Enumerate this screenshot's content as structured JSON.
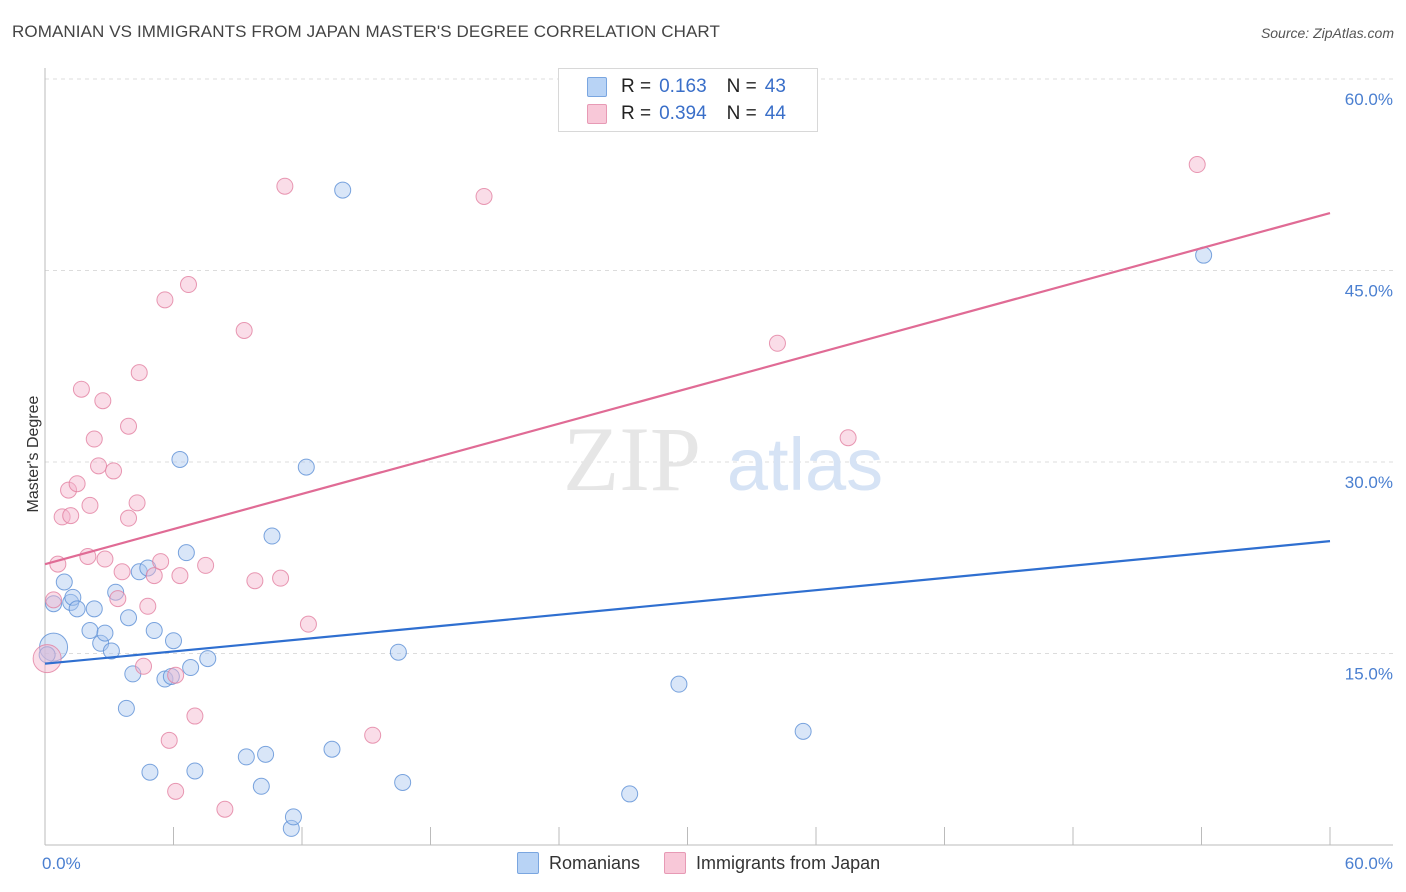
{
  "title": "ROMANIAN VS IMMIGRANTS FROM JAPAN MASTER'S DEGREE CORRELATION CHART",
  "source": "Source: ZipAtlas.com",
  "watermark": {
    "part1": "ZIP",
    "part2": "atlas"
  },
  "legend": {
    "r_label": "R =",
    "n_label": "N =",
    "rows": [
      {
        "r": "0.163",
        "n": "43",
        "color": "#5b8fd6"
      },
      {
        "r": "0.394",
        "n": "44",
        "color": "#e27fa0"
      }
    ]
  },
  "bottom_legend": [
    "Romanians",
    "Immigrants from Japan"
  ],
  "chart_data": {
    "type": "scatter",
    "xlabel": "",
    "ylabel": "Master's Degree",
    "xlim": [
      0,
      60
    ],
    "ylim": [
      0,
      60
    ],
    "x_tick_labels": [
      "0.0%",
      "60.0%"
    ],
    "y_ticks": [
      15,
      30,
      45,
      60
    ],
    "y_tick_labels": [
      "15.0%",
      "30.0%",
      "45.0%",
      "60.0%"
    ],
    "series": [
      {
        "name": "Romanians",
        "color": "#5b8fd6",
        "trend": {
          "x": [
            0,
            60
          ],
          "y": [
            14.2,
            23.8
          ]
        },
        "points": [
          [
            0.4,
            15.5
          ],
          [
            0.4,
            18.9
          ],
          [
            0.9,
            20.6
          ],
          [
            1.2,
            19.0
          ],
          [
            1.3,
            19.4
          ],
          [
            1.5,
            18.5
          ],
          [
            2.1,
            16.8
          ],
          [
            2.3,
            18.5
          ],
          [
            2.6,
            15.8
          ],
          [
            2.8,
            16.6
          ],
          [
            3.1,
            15.2
          ],
          [
            3.3,
            19.8
          ],
          [
            3.8,
            10.7
          ],
          [
            3.9,
            17.8
          ],
          [
            4.1,
            13.4
          ],
          [
            4.4,
            21.4
          ],
          [
            4.9,
            5.7
          ],
          [
            5.1,
            16.8
          ],
          [
            5.6,
            13.0
          ],
          [
            5.9,
            13.2
          ],
          [
            6.0,
            16.0
          ],
          [
            6.3,
            30.2
          ],
          [
            6.6,
            22.9
          ],
          [
            6.8,
            13.9
          ],
          [
            7.0,
            5.8
          ],
          [
            7.6,
            14.6
          ],
          [
            9.4,
            6.9
          ],
          [
            10.1,
            4.6
          ],
          [
            10.3,
            7.1
          ],
          [
            11.5,
            1.3
          ],
          [
            11.6,
            2.2
          ],
          [
            10.6,
            24.2
          ],
          [
            12.2,
            29.6
          ],
          [
            13.4,
            7.5
          ],
          [
            13.9,
            51.3
          ],
          [
            16.5,
            15.1
          ],
          [
            16.7,
            4.9
          ],
          [
            27.3,
            4.0
          ],
          [
            29.6,
            12.6
          ],
          [
            35.4,
            8.9
          ],
          [
            54.1,
            46.2
          ],
          [
            0.1,
            14.9
          ],
          [
            4.8,
            21.7
          ]
        ]
      },
      {
        "name": "Immigrants from Japan",
        "color": "#e27fa0",
        "trend": {
          "x": [
            0,
            60
          ],
          "y": [
            22.0,
            49.5
          ]
        },
        "points": [
          [
            0.1,
            14.6
          ],
          [
            0.4,
            19.2
          ],
          [
            0.6,
            22.0
          ],
          [
            0.8,
            25.7
          ],
          [
            1.1,
            27.8
          ],
          [
            1.2,
            25.8
          ],
          [
            1.5,
            28.3
          ],
          [
            1.7,
            35.7
          ],
          [
            2.0,
            22.6
          ],
          [
            2.1,
            26.6
          ],
          [
            2.3,
            31.8
          ],
          [
            2.5,
            29.7
          ],
          [
            2.7,
            34.8
          ],
          [
            2.8,
            22.4
          ],
          [
            3.2,
            29.3
          ],
          [
            3.4,
            19.3
          ],
          [
            3.6,
            21.4
          ],
          [
            3.9,
            25.6
          ],
          [
            3.9,
            32.8
          ],
          [
            4.3,
            26.8
          ],
          [
            4.4,
            37.0
          ],
          [
            4.6,
            14.0
          ],
          [
            4.8,
            18.7
          ],
          [
            5.1,
            21.1
          ],
          [
            5.4,
            22.2
          ],
          [
            5.6,
            42.7
          ],
          [
            5.8,
            8.2
          ],
          [
            6.1,
            13.3
          ],
          [
            6.1,
            4.2
          ],
          [
            6.3,
            21.1
          ],
          [
            6.7,
            43.9
          ],
          [
            7.0,
            10.1
          ],
          [
            7.5,
            21.9
          ],
          [
            8.4,
            2.8
          ],
          [
            9.3,
            40.3
          ],
          [
            9.8,
            20.7
          ],
          [
            11.0,
            20.9
          ],
          [
            11.2,
            51.6
          ],
          [
            12.3,
            17.3
          ],
          [
            15.3,
            8.6
          ],
          [
            20.5,
            50.8
          ],
          [
            34.2,
            39.3
          ],
          [
            37.5,
            31.9
          ],
          [
            53.8,
            53.3
          ]
        ]
      }
    ]
  }
}
